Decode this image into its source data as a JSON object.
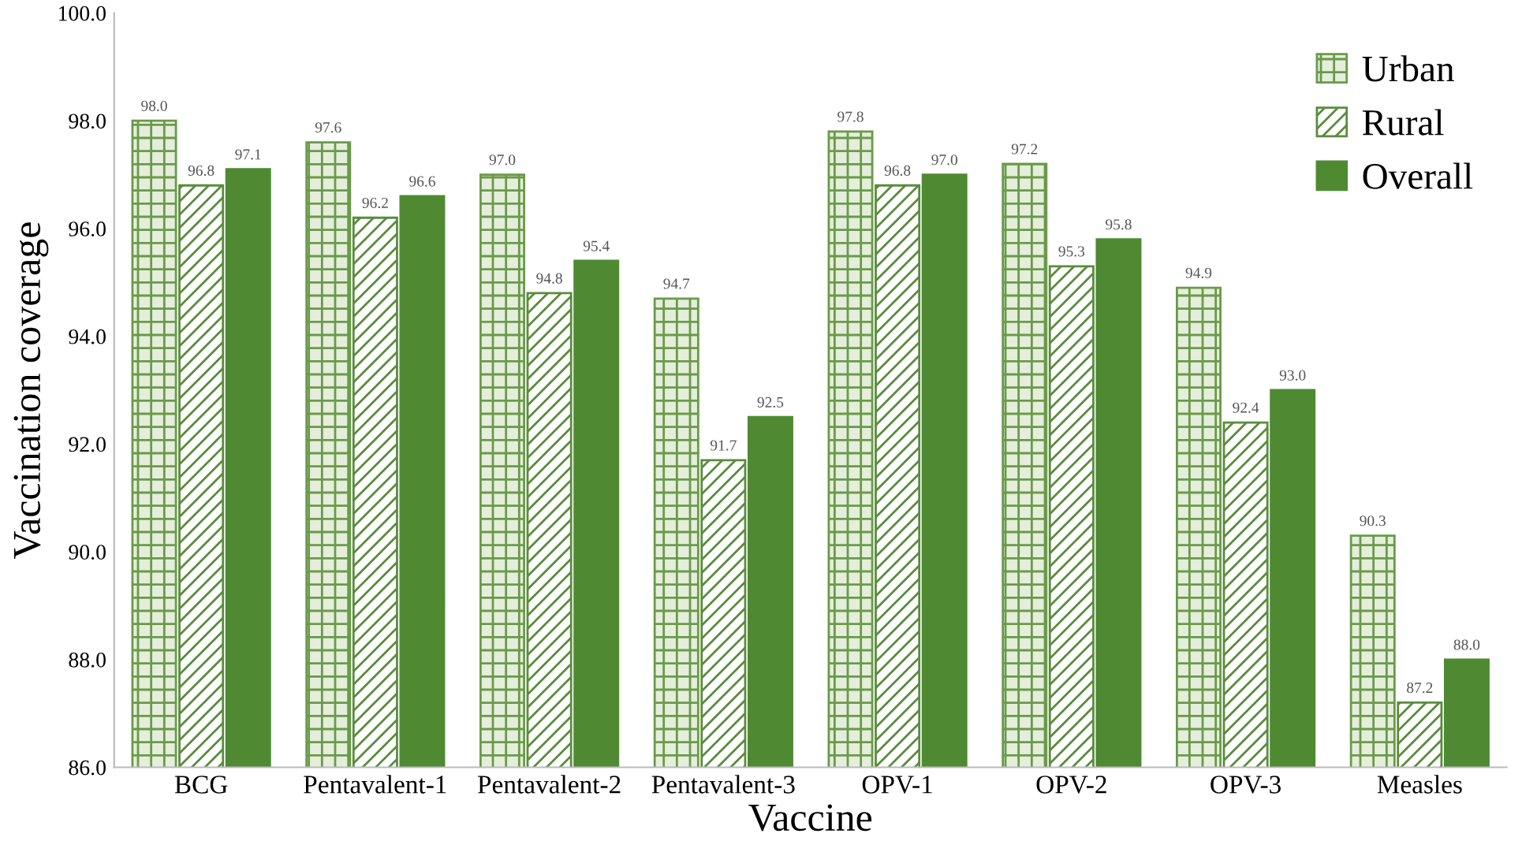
{
  "chart_data": {
    "type": "bar",
    "xlabel": "Vaccine",
    "ylabel": "Vaccination coverage",
    "categories": [
      "BCG",
      "Pentavalent-1",
      "Pentavalent-2",
      "Pentavalent-3",
      "OPV-1",
      "OPV-2",
      "OPV-3",
      "Measles"
    ],
    "series": [
      {
        "name": "Urban",
        "color": "#6a9a4a",
        "values": [
          98.0,
          97.6,
          97.0,
          94.7,
          97.8,
          97.2,
          94.9,
          90.3
        ],
        "value_labels": [
          "98.0",
          "97.6",
          "97.0",
          "94.7",
          "97.8",
          "97.2",
          "94.9",
          "90.3"
        ]
      },
      {
        "name": "Rural",
        "color": "#5a8c3c",
        "values": [
          96.8,
          96.2,
          94.8,
          91.7,
          96.8,
          95.3,
          92.4,
          87.2
        ],
        "value_labels": [
          "96.8",
          "96.2",
          "94.8",
          "91.7",
          "96.8",
          "95.3",
          "92.4",
          "87.2"
        ]
      },
      {
        "name": "Overall",
        "color": "#4f8a33",
        "values": [
          97.1,
          96.6,
          95.4,
          92.5,
          97.0,
          95.8,
          93.0,
          88.0
        ],
        "value_labels": [
          "97.1",
          "96.6",
          "95.4",
          "92.5",
          "97.0",
          "95.8",
          "93.0",
          "88.0"
        ]
      }
    ],
    "ylim": [
      86,
      100
    ],
    "yticks": [
      {
        "value": 86,
        "label": "86.0"
      },
      {
        "value": 88,
        "label": "88.0"
      },
      {
        "value": 90,
        "label": "90.0"
      },
      {
        "value": 92,
        "label": "92.0"
      },
      {
        "value": 94,
        "label": "94.0"
      },
      {
        "value": 96,
        "label": "96.0"
      },
      {
        "value": 98,
        "label": "98.0"
      },
      {
        "value": 100,
        "label": "100.0"
      }
    ],
    "grid": false,
    "legend": "top right"
  }
}
